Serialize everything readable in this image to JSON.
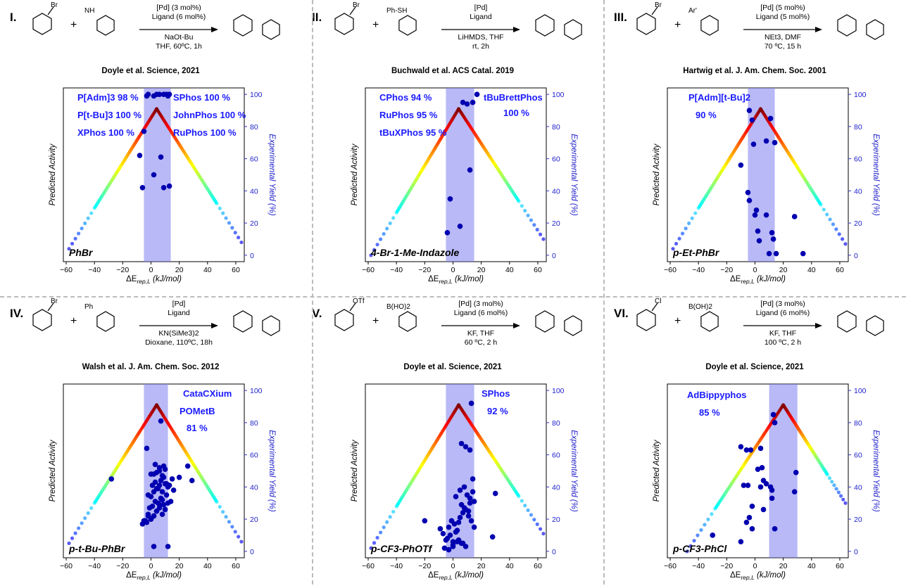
{
  "panels": [
    {
      "roman": "I.",
      "reactant_a": "Br",
      "reactant_b": "NH",
      "conditions": [
        "[Pd] (3 mol%)",
        "Ligand (6 mol%)",
        "NaOt-Bu",
        "THF, 60ºC, 1h"
      ],
      "citation": "Doyle et al. Science, 2021",
      "substrate": "PhBr",
      "ligands": [
        "P[Adm]3 98 %",
        "SPhos 100 %",
        "P[t-Bu]3 100 %",
        "JohnPhos 100 %",
        "XPhos 100 %",
        "RuPhos 100 %"
      ],
      "chart_data": {
        "type": "scatter",
        "xlabel": "ΔErep,L (kJ/mol)",
        "ylabel_left": "Predicted Activity",
        "ylabel_right": "Experimental Yield (%)",
        "xlim": [
          -62,
          66
        ],
        "ylim": [
          -4,
          104
        ],
        "xticks": [
          -60,
          -40,
          -20,
          0,
          20,
          40,
          60
        ],
        "yticks": [
          0,
          20,
          40,
          60,
          80,
          100
        ],
        "volcano": {
          "peak_x": 4,
          "peak_y": 91,
          "end_left": [
            -58,
            4
          ],
          "end_right": [
            64,
            8
          ]
        },
        "band": [
          -5,
          14
        ],
        "yields": {
          "x": [
            -3,
            -2,
            2,
            4,
            6,
            9,
            11,
            12,
            13,
            -8,
            -5,
            7,
            2,
            -6,
            9,
            13
          ],
          "y": [
            99,
            100,
            99,
            100,
            100,
            100,
            100,
            99,
            100,
            62,
            77,
            61,
            50,
            42,
            42,
            43
          ]
        }
      }
    },
    {
      "roman": "II.",
      "reactant_a": "Br",
      "reactant_b": "Ph-SH",
      "conditions": [
        "[Pd]",
        "Ligand",
        "LiHMDS, THF",
        "rt, 2h"
      ],
      "citation": "Buchwald et al. ACS Catal. 2019",
      "substrate": "4-Br-1-Me-Indazole",
      "ligands": [
        "CPhos 94 %",
        "tBuBrettPhos",
        "RuPhos 95 %",
        "100 %",
        "tBuXPhos 95 %"
      ],
      "chart_data": {
        "type": "scatter",
        "xlabel": "ΔErep,L (kJ/mol)",
        "ylabel_left": "Predicted Activity",
        "ylabel_right": "Experimental Yield (%)",
        "xlim": [
          -62,
          66
        ],
        "ylim": [
          -4,
          104
        ],
        "xticks": [
          -60,
          -40,
          -20,
          0,
          20,
          40,
          60
        ],
        "yticks": [
          0,
          20,
          40,
          60,
          80,
          100
        ],
        "volcano": {
          "peak_x": 4,
          "peak_y": 91,
          "end_left": [
            -58,
            0
          ],
          "end_right": [
            64,
            10
          ]
        },
        "band": [
          -5,
          15
        ],
        "yields": {
          "x": [
            7,
            10,
            14,
            17,
            12,
            -2,
            -4,
            5
          ],
          "y": [
            95,
            94,
            95,
            100,
            53,
            35,
            14,
            18
          ]
        }
      }
    },
    {
      "roman": "III.",
      "reactant_a": "Br",
      "reactant_b": "Ar'",
      "conditions": [
        "[Pd] (5 mol%)",
        "Ligand (5 mol%)",
        "NEt3, DMF",
        "70 ºC, 15 h"
      ],
      "citation": "Hartwig et al. J. Am. Chem. Soc. 2001",
      "substrate": "p-Et-PhBr",
      "ligands": [
        "P[Adm][t-Bu]2",
        "90 %"
      ],
      "chart_data": {
        "type": "scatter",
        "xlabel": "ΔErep,L (kJ/mol)",
        "ylabel_left": "Predicted Activity",
        "ylabel_right": "Experimental Yield (%)",
        "xlim": [
          -62,
          66
        ],
        "ylim": [
          -4,
          104
        ],
        "xticks": [
          -60,
          -40,
          -20,
          0,
          20,
          40,
          60
        ],
        "yticks": [
          0,
          20,
          40,
          60,
          80,
          100
        ],
        "volcano": {
          "peak_x": 4,
          "peak_y": 91,
          "end_left": [
            -58,
            4
          ],
          "end_right": [
            64,
            7
          ]
        },
        "band": [
          -5,
          14
        ],
        "yields": {
          "x": [
            -4,
            -2,
            -1,
            8,
            11,
            14,
            -10,
            -5,
            -4,
            1,
            0,
            2,
            3,
            8,
            12,
            13,
            10,
            15,
            28,
            34
          ],
          "y": [
            90,
            84,
            69,
            71,
            85,
            70,
            56,
            39,
            34,
            28,
            25,
            15,
            9,
            25,
            14,
            10,
            1,
            1,
            24,
            1
          ]
        }
      }
    },
    {
      "roman": "IV.",
      "reactant_a": "Br",
      "reactant_b": "Ph",
      "conditions": [
        "[Pd]",
        "Ligand",
        "KN(SiMe3)2",
        "Dioxane, 110ºC, 18h"
      ],
      "citation": "Walsh et al. J. Am. Chem. Soc. 2012",
      "substrate": "p-t-Bu-PhBr",
      "ligands": [
        "CataCXium",
        "POMetB",
        "81 %"
      ],
      "chart_data": {
        "type": "scatter",
        "xlabel": "ΔErep,L (kJ/mol)",
        "ylabel_left": "Predicted Activity",
        "ylabel_right": "Experimental Yield (%)",
        "xlim": [
          -62,
          66
        ],
        "ylim": [
          -4,
          104
        ],
        "xticks": [
          -60,
          -40,
          -20,
          0,
          20,
          40,
          60
        ],
        "yticks": [
          0,
          20,
          40,
          60,
          80,
          100
        ],
        "volcano": {
          "peak_x": 4,
          "peak_y": 91,
          "end_left": [
            -58,
            5
          ],
          "end_right": [
            64,
            6
          ]
        },
        "band": [
          -5,
          12
        ],
        "yields": {
          "x": [
            7,
            -3,
            -28,
            26,
            29,
            20,
            -5,
            -3,
            -2,
            0,
            2,
            4,
            6,
            8,
            10,
            12,
            -1,
            1,
            3,
            5,
            7,
            9,
            11,
            14,
            16,
            -2,
            0,
            2,
            4,
            6,
            8,
            10,
            12,
            1,
            3,
            5,
            7,
            9,
            11,
            13,
            15,
            2,
            4,
            6,
            8,
            10,
            0,
            3,
            6,
            9,
            -6,
            -4,
            -2,
            0,
            2,
            4,
            6,
            8,
            2,
            12
          ],
          "y": [
            81,
            64,
            45,
            53,
            44,
            46,
            19,
            18,
            22,
            20,
            22,
            25,
            27,
            23,
            26,
            30,
            27,
            28,
            31,
            30,
            33,
            29,
            35,
            31,
            38,
            35,
            34,
            37,
            39,
            41,
            37,
            42,
            40,
            41,
            43,
            39,
            44,
            46,
            42,
            41,
            45,
            48,
            49,
            50,
            47,
            51,
            48,
            54,
            52,
            53,
            17,
            19,
            23,
            20,
            22,
            25,
            29,
            32,
            3,
            3
          ]
        }
      }
    },
    {
      "roman": "V.",
      "reactant_a": "OTf",
      "reactant_b": "B(HO)2",
      "conditions": [
        "[Pd] (3 mol%)",
        "Ligand (6 mol%)",
        "KF, THF",
        "60 ºC, 2 h"
      ],
      "citation": "Doyle et al. Science, 2021",
      "substrate": "p-CF3-PhOTf",
      "ligands": [
        "SPhos",
        "92 %"
      ],
      "chart_data": {
        "type": "scatter",
        "xlabel": "ΔErep,L (kJ/mol)",
        "ylabel_left": "Predicted Activity",
        "ylabel_right": "Experimental Yield (%)",
        "xlim": [
          -62,
          66
        ],
        "ylim": [
          -4,
          104
        ],
        "xticks": [
          -60,
          -40,
          -20,
          0,
          20,
          40,
          60
        ],
        "yticks": [
          0,
          20,
          40,
          60,
          80,
          100
        ],
        "volcano": {
          "peak_x": 4,
          "peak_y": 91,
          "end_left": [
            -58,
            2
          ],
          "end_right": [
            64,
            11
          ]
        },
        "band": [
          -5,
          15
        ],
        "yields": {
          "x": [
            13,
            6,
            9,
            12,
            30,
            28,
            -20,
            -9,
            -7,
            -5,
            -3,
            -1,
            1,
            3,
            5,
            7,
            9,
            11,
            13,
            15,
            -4,
            -2,
            0,
            2,
            4,
            6,
            8,
            10,
            12,
            14,
            -6,
            -3,
            0,
            3,
            6,
            9,
            12,
            15,
            2,
            5,
            8,
            11,
            14,
            -3,
            0,
            4,
            7
          ],
          "y": [
            92,
            67,
            65,
            63,
            36,
            9,
            19,
            14,
            11,
            7,
            15,
            19,
            17,
            13,
            21,
            24,
            26,
            22,
            19,
            15,
            8,
            10,
            6,
            12,
            18,
            29,
            27,
            35,
            33,
            37,
            2,
            1,
            4,
            6,
            5,
            3,
            30,
            31,
            34,
            38,
            40,
            25,
            45,
            1,
            3,
            7,
            5
          ]
        }
      }
    },
    {
      "roman": "VI.",
      "reactant_a": "Cl",
      "reactant_b": "B(OH)2",
      "conditions": [
        "[Pd] (3 mol%)",
        "Ligand (6 mol%)",
        "KF, THF",
        "100 ºC, 2 h"
      ],
      "citation": "Doyle et al. Science, 2021",
      "substrate": "p-CF3-PhCl",
      "ligands": [
        "AdBippyphos",
        "85 %"
      ],
      "chart_data": {
        "type": "scatter",
        "xlabel": "ΔErep,L (kJ/mol)",
        "ylabel_left": "Predicted Activity",
        "ylabel_right": "Experimental Yield (%)",
        "xlim": [
          -62,
          66
        ],
        "ylim": [
          -4,
          104
        ],
        "xticks": [
          -60,
          -40,
          -20,
          0,
          20,
          40,
          60
        ],
        "yticks": [
          0,
          20,
          40,
          60,
          80,
          100
        ],
        "volcano": {
          "peak_x": 20,
          "peak_y": 91,
          "end_left": [
            -48,
            0
          ],
          "end_right": [
            64,
            30
          ]
        },
        "band": [
          10,
          30
        ],
        "yields": {
          "x": [
            13,
            14,
            -10,
            -6,
            -3,
            4,
            2,
            5,
            29,
            -8,
            -5,
            8,
            11,
            12,
            4,
            6,
            12,
            28,
            -2,
            -4,
            6,
            -6,
            -2,
            14,
            -30,
            -10
          ],
          "y": [
            85,
            80,
            65,
            63,
            63,
            64,
            51,
            52,
            49,
            41,
            41,
            42,
            40,
            38,
            40,
            44,
            33,
            37,
            28,
            21,
            26,
            18,
            14,
            14,
            10,
            6
          ]
        }
      }
    }
  ]
}
